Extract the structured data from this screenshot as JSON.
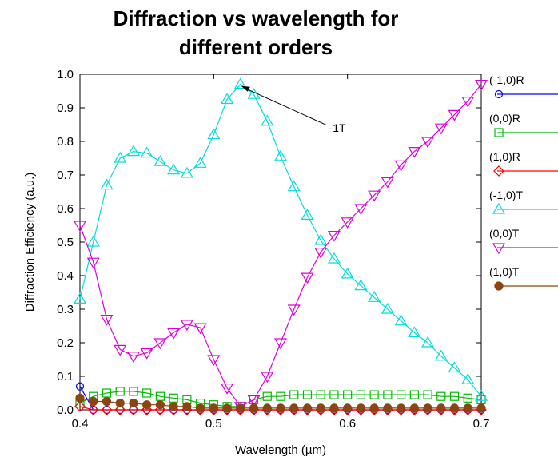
{
  "chart_data": {
    "type": "line",
    "title_line1": "Diffraction vs wavelength for",
    "title_line2": "different orders",
    "xlabel": "Wavelength (µm)",
    "ylabel": "Diffraction Efficiency (a.u.)",
    "xlim": [
      0.4,
      0.7
    ],
    "ylim": [
      0.0,
      1.0
    ],
    "x_ticks": [
      "0.4",
      "0.5",
      "0.6",
      "0.7"
    ],
    "y_ticks": [
      "0.0",
      "0.1",
      "0.2",
      "0.3",
      "0.4",
      "0.5",
      "0.6",
      "0.7",
      "0.8",
      "0.9",
      "1.0"
    ],
    "grid": false,
    "legend_position": "right",
    "annotation": {
      "text": "-1T",
      "x": 0.52,
      "y": 0.965,
      "text_x": 0.585,
      "text_y": 0.84
    },
    "x": [
      0.4,
      0.41,
      0.42,
      0.43,
      0.44,
      0.45,
      0.46,
      0.47,
      0.48,
      0.49,
      0.5,
      0.51,
      0.52,
      0.53,
      0.54,
      0.55,
      0.56,
      0.57,
      0.58,
      0.59,
      0.6,
      0.61,
      0.62,
      0.63,
      0.64,
      0.65,
      0.66,
      0.67,
      0.68,
      0.69,
      0.7
    ],
    "series": [
      {
        "name": "(-1,0)R",
        "color": "#0000ff",
        "marker": "circle-open",
        "values": [
          0.07,
          0.0,
          0.0,
          0.0,
          0.0,
          0.0,
          0.0,
          0.0,
          0.0,
          0.0,
          0.0,
          0.0,
          0.0,
          0.0,
          0.0,
          0.0,
          0.0,
          0.0,
          0.0,
          0.0,
          0.0,
          0.0,
          0.0,
          0.0,
          0.0,
          0.0,
          0.0,
          0.0,
          0.0,
          0.0,
          0.0
        ]
      },
      {
        "name": "(0,0)R",
        "color": "#00bb00",
        "marker": "square-open",
        "values": [
          0.02,
          0.04,
          0.05,
          0.055,
          0.055,
          0.05,
          0.04,
          0.035,
          0.03,
          0.02,
          0.015,
          0.01,
          0.01,
          0.03,
          0.04,
          0.04,
          0.045,
          0.045,
          0.045,
          0.045,
          0.045,
          0.045,
          0.045,
          0.045,
          0.045,
          0.045,
          0.045,
          0.04,
          0.04,
          0.035,
          0.03
        ]
      },
      {
        "name": "(1,0)R",
        "color": "#ff0000",
        "marker": "diamond-open",
        "values": [
          0.01,
          0.0,
          0.0,
          0.0,
          0.0,
          0.0,
          0.0,
          0.0,
          0.0,
          0.0,
          0.0,
          0.0,
          0.0,
          0.0,
          0.0,
          0.0,
          0.0,
          0.0,
          0.0,
          0.0,
          0.0,
          0.0,
          0.0,
          0.0,
          0.0,
          0.0,
          0.0,
          0.0,
          0.0,
          0.0,
          0.0
        ]
      },
      {
        "name": "(-1,0)T",
        "color": "#00dddd",
        "marker": "triangle-up-open",
        "values": [
          0.33,
          0.5,
          0.67,
          0.75,
          0.77,
          0.765,
          0.74,
          0.715,
          0.705,
          0.735,
          0.82,
          0.925,
          0.97,
          0.94,
          0.86,
          0.755,
          0.665,
          0.58,
          0.505,
          0.45,
          0.405,
          0.37,
          0.335,
          0.3,
          0.265,
          0.23,
          0.2,
          0.16,
          0.125,
          0.09,
          0.04
        ]
      },
      {
        "name": "(0,0)T",
        "color": "#dd00dd",
        "marker": "triangle-down-open",
        "values": [
          0.55,
          0.44,
          0.27,
          0.18,
          0.16,
          0.17,
          0.2,
          0.23,
          0.255,
          0.245,
          0.15,
          0.065,
          0.01,
          0.03,
          0.1,
          0.2,
          0.3,
          0.395,
          0.47,
          0.52,
          0.56,
          0.6,
          0.64,
          0.68,
          0.73,
          0.77,
          0.8,
          0.84,
          0.88,
          0.92,
          0.97
        ]
      },
      {
        "name": "(1,0)T",
        "color": "#8b4513",
        "marker": "circle-filled",
        "values": [
          0.035,
          0.025,
          0.025,
          0.02,
          0.02,
          0.015,
          0.015,
          0.01,
          0.01,
          0.005,
          0.005,
          0.005,
          0.005,
          0.005,
          0.005,
          0.005,
          0.005,
          0.005,
          0.005,
          0.005,
          0.005,
          0.005,
          0.005,
          0.005,
          0.005,
          0.005,
          0.005,
          0.005,
          0.005,
          0.005,
          0.005
        ]
      }
    ]
  }
}
